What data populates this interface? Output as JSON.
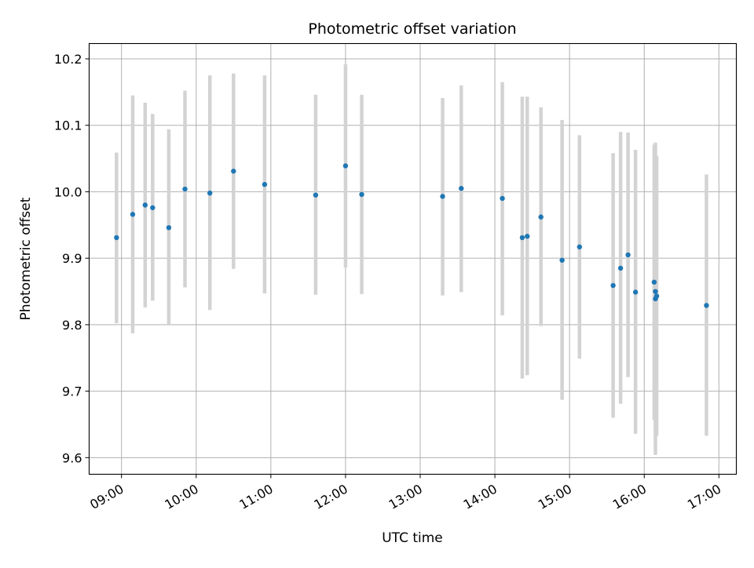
{
  "chart_data": {
    "type": "scatter",
    "title": "Photometric offset variation",
    "xlabel": "UTC time",
    "ylabel": "Photometric offset",
    "xlim": [
      "08:34",
      "17:14"
    ],
    "ylim": [
      9.575,
      10.223
    ],
    "x_ticks": [
      "09:00",
      "10:00",
      "11:00",
      "12:00",
      "13:00",
      "14:00",
      "15:00",
      "16:00",
      "17:00"
    ],
    "y_ticks": [
      9.6,
      9.7,
      9.8,
      9.9,
      10.0,
      10.1,
      10.2
    ],
    "y_tick_labels": [
      "9.6",
      "9.7",
      "9.8",
      "9.9",
      "10.0",
      "10.1",
      "10.2"
    ],
    "grid": true,
    "colors": {
      "points": "#1f77b4",
      "error_bars": "#d3d3d3",
      "grid": "#b0b0b0"
    },
    "series": [
      {
        "points": [
          {
            "x": "08:56",
            "y": 9.931,
            "err_low": 9.802,
            "err_high": 10.059
          },
          {
            "x": "09:09",
            "y": 9.966,
            "err_low": 9.787,
            "err_high": 10.145
          },
          {
            "x": "09:19",
            "y": 9.98,
            "err_low": 9.826,
            "err_high": 10.134
          },
          {
            "x": "09:25",
            "y": 9.976,
            "err_low": 9.836,
            "err_high": 10.117
          },
          {
            "x": "09:38",
            "y": 9.946,
            "err_low": 9.8,
            "err_high": 10.094
          },
          {
            "x": "09:51",
            "y": 10.004,
            "err_low": 9.856,
            "err_high": 10.152
          },
          {
            "x": "10:11",
            "y": 9.998,
            "err_low": 9.822,
            "err_high": 10.175
          },
          {
            "x": "10:30",
            "y": 10.031,
            "err_low": 9.884,
            "err_high": 10.178
          },
          {
            "x": "10:55",
            "y": 10.011,
            "err_low": 9.847,
            "err_high": 10.175
          },
          {
            "x": "11:36",
            "y": 9.995,
            "err_low": 9.845,
            "err_high": 10.146
          },
          {
            "x": "12:00",
            "y": 10.039,
            "err_low": 9.886,
            "err_high": 10.192
          },
          {
            "x": "12:13",
            "y": 9.996,
            "err_low": 9.846,
            "err_high": 10.146
          },
          {
            "x": "13:18",
            "y": 9.993,
            "err_low": 9.844,
            "err_high": 10.141
          },
          {
            "x": "13:33",
            "y": 10.005,
            "err_low": 9.849,
            "err_high": 10.16
          },
          {
            "x": "14:06",
            "y": 9.99,
            "err_low": 9.814,
            "err_high": 10.165
          },
          {
            "x": "14:22",
            "y": 9.931,
            "err_low": 9.719,
            "err_high": 10.143
          },
          {
            "x": "14:26",
            "y": 9.933,
            "err_low": 9.724,
            "err_high": 10.143
          },
          {
            "x": "14:37",
            "y": 9.962,
            "err_low": 9.798,
            "err_high": 10.127
          },
          {
            "x": "14:54",
            "y": 9.897,
            "err_low": 9.687,
            "err_high": 10.108
          },
          {
            "x": "15:08",
            "y": 9.917,
            "err_low": 9.749,
            "err_high": 10.085
          },
          {
            "x": "15:35",
            "y": 9.859,
            "err_low": 9.66,
            "err_high": 10.058
          },
          {
            "x": "15:41",
            "y": 9.885,
            "err_low": 9.681,
            "err_high": 10.09
          },
          {
            "x": "15:47",
            "y": 9.905,
            "err_low": 9.721,
            "err_high": 10.089
          },
          {
            "x": "15:53",
            "y": 9.849,
            "err_low": 9.636,
            "err_high": 10.063
          },
          {
            "x": "16:08",
            "y": 9.864,
            "err_low": 9.657,
            "err_high": 10.071
          },
          {
            "x": "16:09",
            "y": 9.85,
            "err_low": 9.63,
            "err_high": 10.052
          },
          {
            "x": "16:09",
            "y": 9.839,
            "err_low": 9.604,
            "err_high": 10.074
          },
          {
            "x": "16:10",
            "y": 9.843,
            "err_low": 9.633,
            "err_high": 10.054
          },
          {
            "x": "16:50",
            "y": 9.829,
            "err_low": 9.633,
            "err_high": 10.026
          }
        ]
      }
    ]
  }
}
